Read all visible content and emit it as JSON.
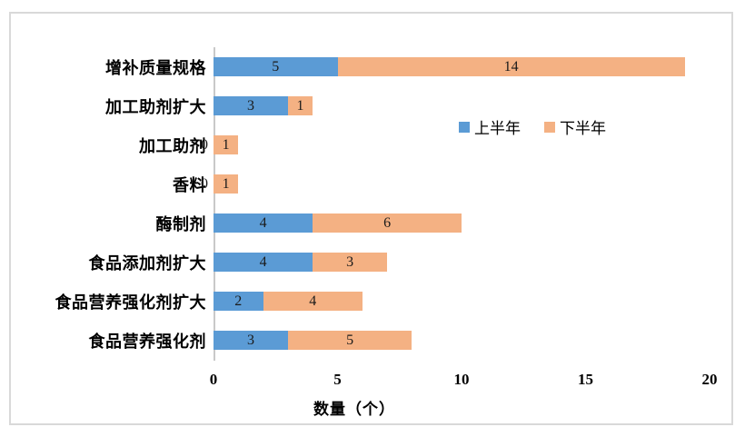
{
  "chart_data": {
    "type": "bar",
    "orientation": "horizontal",
    "stacked": true,
    "categories": [
      "增补质量规格",
      "加工助剂扩大",
      "加工助剂",
      "香料",
      "酶制剂",
      "食品添加剂扩大",
      "食品营养强化剂扩大",
      "食品营养强化剂"
    ],
    "series": [
      {
        "name": "上半年",
        "color": "#5B9BD5",
        "values": [
          5,
          3,
          0,
          0,
          4,
          4,
          2,
          3
        ]
      },
      {
        "name": "下半年",
        "color": "#F4B183",
        "values": [
          14,
          1,
          1,
          1,
          6,
          3,
          4,
          5
        ]
      }
    ],
    "xlabel": "数量（个）",
    "xticks": [
      0,
      5,
      10,
      15,
      20
    ],
    "xlim": [
      0,
      20
    ],
    "grid": false,
    "legend_position": "inside-right-upper",
    "data_labels": true
  },
  "colors": {
    "axis_line": "#C9C9C9",
    "chart_border": "#D9D9D9",
    "label_text": "#000000",
    "data_label_text": "#1a1a1a"
  }
}
